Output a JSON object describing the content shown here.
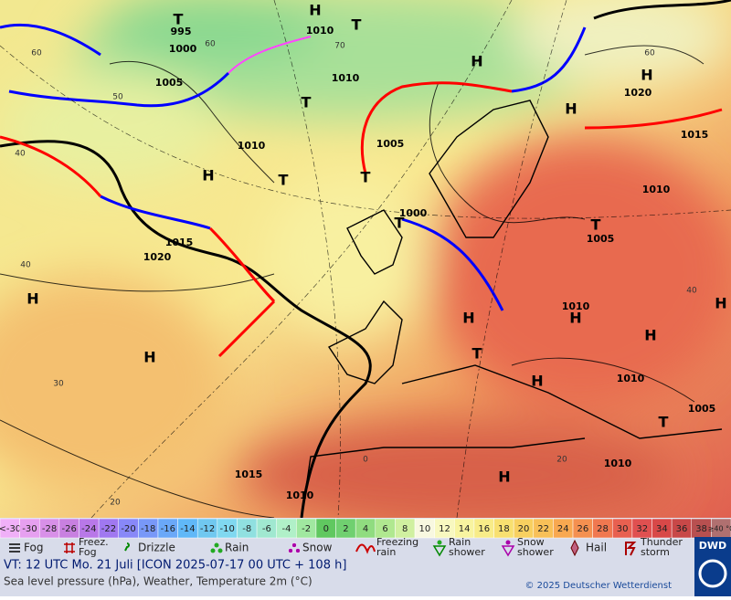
{
  "map": {
    "labels": [
      "T",
      "995",
      "1000",
      "H",
      "1010",
      "T",
      "1010",
      "H",
      "H",
      "1020",
      "1005",
      "T",
      "H",
      "1015",
      "1010",
      "1005",
      "H",
      "T",
      "T",
      "1010",
      "1000",
      "T",
      "T",
      "1005",
      "1015",
      "1020",
      "H",
      "1010",
      "H",
      "H",
      "H",
      "H",
      "H",
      "T",
      "H",
      "1010",
      "1005",
      "T",
      "H",
      "1010",
      "1015",
      "1010"
    ],
    "isotherm_labels": [
      "60",
      "60",
      "50",
      "40",
      "60",
      "70",
      "40",
      "30",
      "20",
      "0",
      "20",
      "40"
    ]
  },
  "temperature_scale": {
    "labels": [
      "<-30",
      "-30",
      "-28",
      "-26",
      "-24",
      "-22",
      "-20",
      "-18",
      "-16",
      "-14",
      "-12",
      "-10",
      "-8",
      "-6",
      "-4",
      "-2",
      "0",
      "2",
      "4",
      "6",
      "8",
      "10",
      "12",
      "14",
      "16",
      "18",
      "20",
      "22",
      "24",
      "26",
      "28",
      "30",
      "32",
      "34",
      "36",
      "38",
      "≥40 °C"
    ],
    "colors": [
      "#f0b0f8",
      "#e6a0f0",
      "#d890e8",
      "#c880e0",
      "#b878e8",
      "#a078f0",
      "#8888f8",
      "#7898f8",
      "#6aa8f8",
      "#60b8f8",
      "#70c8f0",
      "#80d8f0",
      "#90e0e0",
      "#a0e8d0",
      "#b0f0c8",
      "#a0e8a0",
      "#60c860",
      "#70d070",
      "#90dc80",
      "#b0e890",
      "#d0f0a0",
      "#f8f8e0",
      "#f8f8c0",
      "#f8f4a0",
      "#f8ec88",
      "#f8e070",
      "#f8d060",
      "#f8c058",
      "#f8a850",
      "#f49050",
      "#f07850",
      "#e86050",
      "#e05050",
      "#d84848",
      "#c84848",
      "#b85050",
      "#b07070"
    ]
  },
  "weather_legend": [
    {
      "lines": [
        "Fog"
      ]
    },
    {
      "lines": [
        "Freez.",
        "Fog"
      ]
    },
    {
      "lines": [
        "Drizzle"
      ]
    },
    {
      "lines": [
        "Rain"
      ]
    },
    {
      "lines": [
        "Snow"
      ]
    },
    {
      "lines": [
        "Freezing",
        "rain"
      ]
    },
    {
      "lines": [
        "Rain",
        "shower"
      ]
    },
    {
      "lines": [
        "Snow",
        "shower"
      ]
    },
    {
      "lines": [
        "Hail"
      ]
    },
    {
      "lines": [
        "Thunder",
        "storm"
      ]
    }
  ],
  "footer": {
    "valid_time": "VT: 12 UTC Mo.  21 Juli [ICON 2025-07-17  00 UTC + 108 h]",
    "subtitle": "Sea level pressure (hPa), Weather, Temperature 2m (°C)",
    "copyright": "© 2025 Deutscher Wetterdienst",
    "logo": "DWD"
  }
}
